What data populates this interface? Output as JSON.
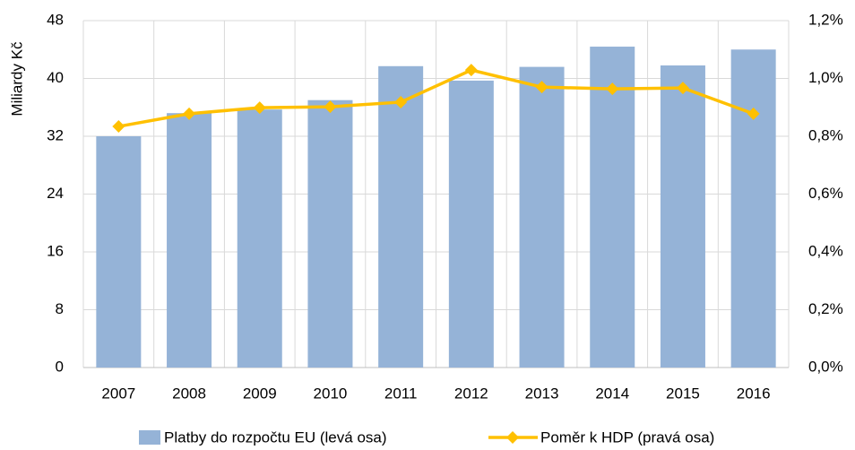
{
  "chart_data": {
    "type": "bar_line",
    "y_label": "Miliardy Kč",
    "categories": [
      "2007",
      "2008",
      "2009",
      "2010",
      "2011",
      "2012",
      "2013",
      "2014",
      "2015",
      "2016"
    ],
    "series": [
      {
        "name": "Platby do rozpočtu EU (levá osa)",
        "type": "bar",
        "color": "#95b3d7",
        "values": [
          32.0,
          35.2,
          35.7,
          37.0,
          41.7,
          39.7,
          41.6,
          44.4,
          41.8,
          44.0
        ]
      },
      {
        "name": "Poměr k HDP (pravá osa)",
        "type": "line",
        "axis": "y2",
        "color": "#ffc000",
        "values": [
          0.834,
          0.878,
          0.899,
          0.902,
          0.918,
          1.029,
          0.97,
          0.964,
          0.967,
          0.878
        ]
      }
    ],
    "ylim": [
      0,
      48
    ],
    "yticks": [
      0,
      8,
      16,
      24,
      32,
      40,
      48
    ],
    "y2lim": [
      0,
      1.2
    ],
    "y2ticks": [
      {
        "value": 0,
        "label": "0,0%"
      },
      {
        "value": 0.2,
        "label": "0,2%"
      },
      {
        "value": 0.4,
        "label": "0,4%"
      },
      {
        "value": 0.6,
        "label": "0,6%"
      },
      {
        "value": 0.8,
        "label": "0,8%"
      },
      {
        "value": 1.0,
        "label": "1,0%"
      },
      {
        "value": 1.2,
        "label": "1,2%"
      }
    ],
    "grid": true,
    "legend": "bottom"
  }
}
